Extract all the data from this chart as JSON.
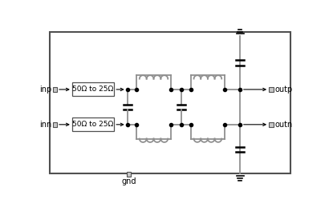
{
  "fig_width": 4.15,
  "fig_height": 2.59,
  "dpi": 100,
  "bg_color": "#ffffff",
  "border_color": "#505050",
  "wire_color": "#909090",
  "dark_color": "#000000",
  "box_fill": "#c8c8c8",
  "box_edge": "#505050",
  "text_color": "#000000",
  "font_size": 7,
  "box1_label": "50Ω to 25Ω",
  "box2_label": "50Ω to 25Ω",
  "inp_label": "inp",
  "inn_label": "inn",
  "outp_label": "outp",
  "outn_label": "outn",
  "gnd_label": "gnd"
}
